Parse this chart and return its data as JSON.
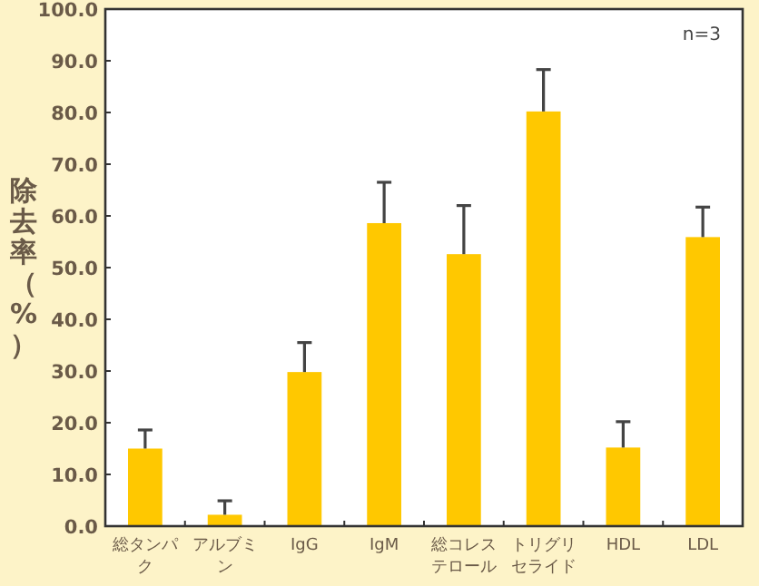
{
  "chart_data": {
    "type": "bar",
    "ylabel": "除去率（%）",
    "categories": [
      "総タンパク",
      "アルブミン",
      "IgG",
      "IgM",
      "総コレステロール",
      "トリグリセライド",
      "HDL",
      "LDL"
    ],
    "values": [
      15.0,
      2.2,
      29.8,
      58.6,
      52.6,
      80.2,
      15.2,
      55.9
    ],
    "errors": [
      [
        15.0,
        18.6
      ],
      [
        2.2,
        4.9
      ],
      [
        29.8,
        35.5
      ],
      [
        58.6,
        66.5
      ],
      [
        52.6,
        62.0
      ],
      [
        80.2,
        88.3
      ],
      [
        15.2,
        20.2
      ],
      [
        55.9,
        61.7
      ]
    ],
    "color": "#ffc800",
    "ylim": [
      0,
      100
    ],
    "yticks": [
      {
        "value": 0,
        "label": "0.0"
      },
      {
        "value": 10,
        "label": "10.0"
      },
      {
        "value": 20,
        "label": "20.0"
      },
      {
        "value": 30,
        "label": "30.0"
      },
      {
        "value": 40,
        "label": "40.0"
      },
      {
        "value": 50,
        "label": "50.0"
      },
      {
        "value": 60,
        "label": "60.0"
      },
      {
        "value": 70,
        "label": "70.0"
      },
      {
        "value": 80,
        "label": "80.0"
      },
      {
        "value": 90,
        "label": "90.0"
      },
      {
        "value": 100,
        "label": "100.0"
      }
    ],
    "annotations": [
      "n=3"
    ]
  }
}
